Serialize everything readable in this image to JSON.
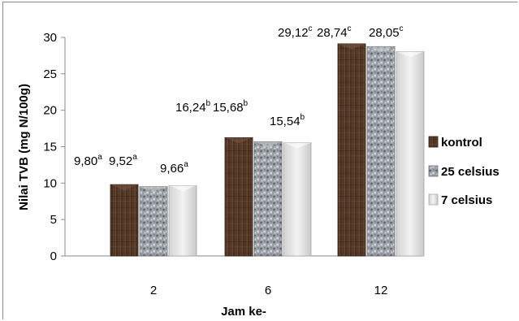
{
  "chart_data": {
    "type": "bar",
    "categories": [
      "2",
      "6",
      "12"
    ],
    "xlabel": "Jam ke-",
    "ylabel": "Nilai  TVB (mg N/100g)",
    "ylim": [
      0,
      30
    ],
    "yticks": [
      "0",
      "5",
      "10",
      "15",
      "20",
      "25",
      "30"
    ],
    "grid": false,
    "legend_position": "right",
    "series": [
      {
        "name": "kontrol",
        "values": [
          9.8,
          16.24,
          29.12
        ],
        "labels": [
          "9,80",
          "16,24",
          "29,12"
        ],
        "superscripts": [
          "a",
          "b",
          "c"
        ],
        "color": "#4a3426"
      },
      {
        "name": "25 celsius",
        "values": [
          9.52,
          15.68,
          28.74
        ],
        "labels": [
          "9,52",
          "15,68",
          "28,74"
        ],
        "superscripts": [
          "a",
          "b",
          "c"
        ],
        "color": "#8a8f95"
      },
      {
        "name": "7 celsius",
        "values": [
          9.66,
          15.54,
          28.05
        ],
        "labels": [
          "9,66",
          "15,54",
          "28,05"
        ],
        "superscripts": [
          "a",
          "b",
          "c"
        ],
        "color": "#e4e4e4"
      }
    ]
  }
}
